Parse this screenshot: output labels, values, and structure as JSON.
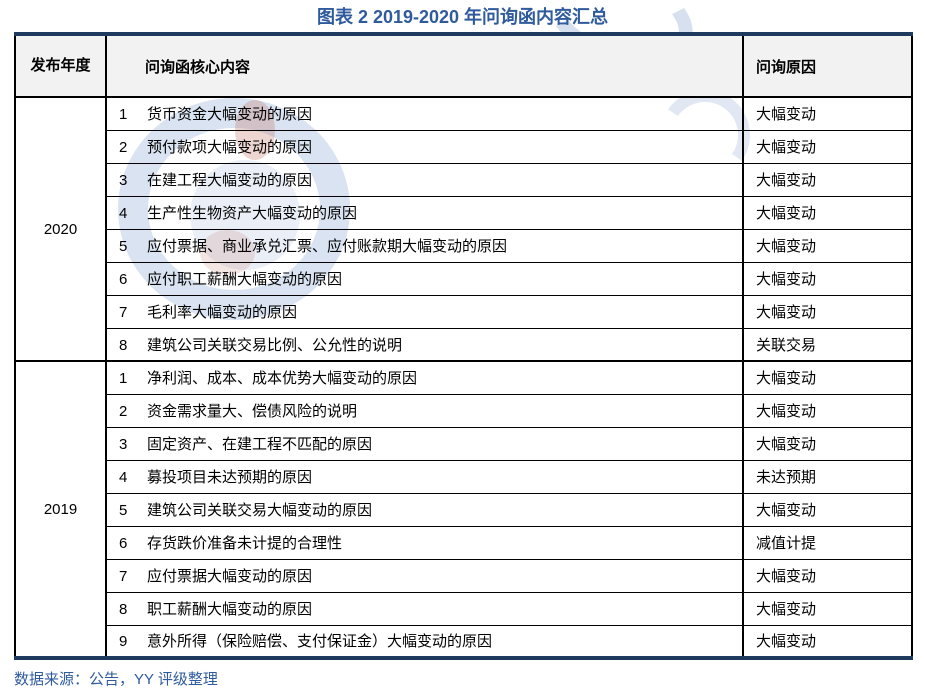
{
  "title": "图表 2 2019-2020 年问询函内容汇总",
  "colors": {
    "title_blue": "#2F5B9D",
    "navy_border": "#1F3A5F",
    "header_bg": "#F2F2F2",
    "cell_border": "#000000",
    "footer_blue": "#2F5B9D",
    "watermark_blue": "#9FB6D9",
    "text_color": "#000000"
  },
  "table": {
    "headers": {
      "year": "发布年度",
      "content": "问询函核心内容",
      "reason": "问询原因"
    },
    "groups": [
      {
        "year": "2020",
        "rows": [
          {
            "no": "1",
            "content": "货币资金大幅变动的原因",
            "reason": "大幅变动"
          },
          {
            "no": "2",
            "content": "预付款项大幅变动的原因",
            "reason": "大幅变动"
          },
          {
            "no": "3",
            "content": "在建工程大幅变动的原因",
            "reason": "大幅变动"
          },
          {
            "no": "4",
            "content": "生产性生物资产大幅变动的原因",
            "reason": "大幅变动"
          },
          {
            "no": "5",
            "content": "应付票据、商业承兑汇票、应付账款期大幅变动的原因",
            "reason": "大幅变动"
          },
          {
            "no": "6",
            "content": "应付职工薪酬大幅变动的原因",
            "reason": "大幅变动"
          },
          {
            "no": "7",
            "content": "毛利率大幅变动的原因",
            "reason": "大幅变动"
          },
          {
            "no": "8",
            "content": "建筑公司关联交易比例、公允性的说明",
            "reason": "关联交易"
          }
        ]
      },
      {
        "year": "2019",
        "rows": [
          {
            "no": "1",
            "content": "净利润、成本、成本优势大幅变动的原因",
            "reason": "大幅变动"
          },
          {
            "no": "2",
            "content": "资金需求量大、偿债风险的说明",
            "reason": "大幅变动"
          },
          {
            "no": "3",
            "content": "固定资产、在建工程不匹配的原因",
            "reason": "大幅变动"
          },
          {
            "no": "4",
            "content": "募投项目未达预期的原因",
            "reason": "未达预期"
          },
          {
            "no": "5",
            "content": "建筑公司关联交易大幅变动的原因",
            "reason": "大幅变动"
          },
          {
            "no": "6",
            "content": "存货跌价准备未计提的合理性",
            "reason": "减值计提"
          },
          {
            "no": "7",
            "content": "应付票据大幅变动的原因",
            "reason": "大幅变动"
          },
          {
            "no": "8",
            "content": "职工薪酬大幅变动的原因",
            "reason": "大幅变动"
          },
          {
            "no": "9",
            "content": "意外所得（保险赔偿、支付保证金）大幅变动的原因",
            "reason": "大幅变动"
          }
        ]
      }
    ]
  },
  "footer": {
    "source": "数据来源：公告，YY 评级整理"
  }
}
